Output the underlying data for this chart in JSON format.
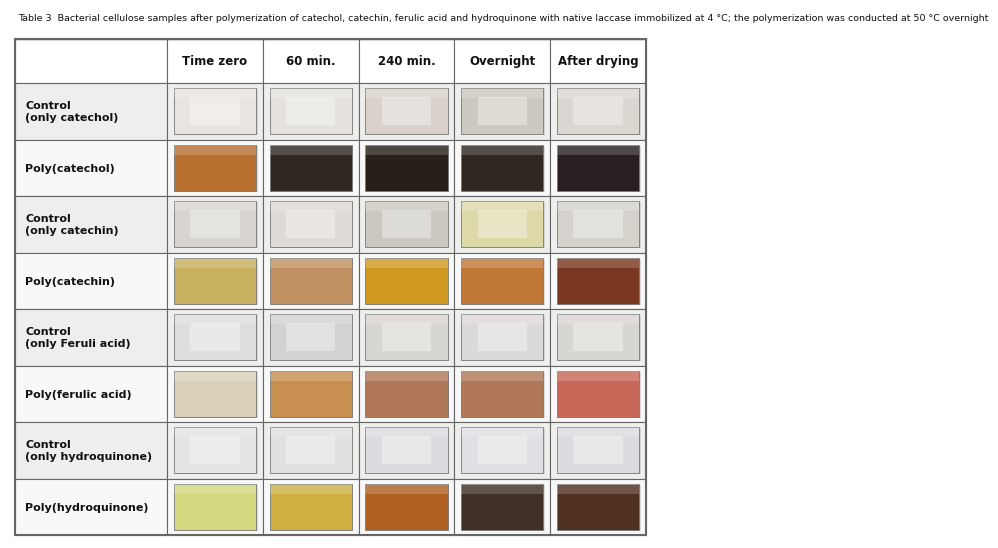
{
  "col_headers": [
    "Time zero",
    "60 min.",
    "240 min.",
    "Overnight",
    "After drying"
  ],
  "row_labels": [
    "Control\n(only catechol)",
    "Poly(catechol)",
    "Control\n(only catechin)",
    "Poly(catechin)",
    "Control\n(only Feruli acid)",
    "Poly(ferulic acid)",
    "Control\n(only hydroquinone)",
    "Poly(hydroquinone)"
  ],
  "control_rows": [
    0,
    2,
    4,
    6
  ],
  "cell_colors": [
    [
      "#e8e4df",
      "#e5e2dd",
      "#d8d2ca",
      "#cdc8c0",
      "#dbd6d0"
    ],
    [
      "#b87030",
      "#302820",
      "#282018",
      "#302820",
      "#282020"
    ],
    [
      "#d8d5d0",
      "#dedad5",
      "#ccc8c0",
      "#ddd8a8",
      "#d5d2cc"
    ],
    [
      "#c8b060",
      "#c09060",
      "#d09820",
      "#c07838",
      "#7a3820"
    ],
    [
      "#e0dedc",
      "#d4d2d0",
      "#d8d6d2",
      "#dcdad8",
      "#d8d6d2"
    ],
    [
      "#d8d0b8",
      "#c89050",
      "#b07858",
      "#b07858",
      "#c86858"
    ],
    [
      "#e4e4e4",
      "#e0e0e0",
      "#dcdce0",
      "#e0e0e4",
      "#dcdce0"
    ],
    [
      "#d4d880",
      "#d0b040",
      "#b06020",
      "#403028",
      "#503020"
    ]
  ],
  "cell_bg_colors": [
    [
      "#c8c5be",
      "#c8c5be",
      "#bfbab3",
      "#b8b3ac",
      "#c5c0bc"
    ],
    [
      "#9a6028",
      "#28201a",
      "#201810",
      "#28201a",
      "#201818"
    ],
    [
      "#c0bdb8",
      "#c5c2bc",
      "#b5b0a8",
      "#c8c390",
      "#bdbab4"
    ],
    [
      "#b0983e",
      "#a87848",
      "#b88010",
      "#a86028",
      "#621808"
    ],
    [
      "#c8c6c4",
      "#bbb9b8",
      "#c0bebc",
      "#c4c2c0",
      "#c0beba"
    ],
    [
      "#c0b8a0",
      "#b07838",
      "#987040",
      "#987040",
      "#b05040"
    ],
    [
      "#cccccc",
      "#c8c8c8",
      "#c4c4c8",
      "#c8c8cc",
      "#c4c4c8"
    ],
    [
      "#bcbf68",
      "#b89828",
      "#984808",
      "#302018",
      "#381808"
    ]
  ],
  "figure_bg": "#ffffff",
  "border_color": "#666666",
  "header_bg": "#ffffff",
  "control_bg": "#eeeeec",
  "poly_bg": "#f8f8f8",
  "title_text": "Table 3  Bacterial cellulose samples after polymerization of catechol, catechin, ferulic acid and hydroquinone with native laccase immobilized at 4 °C; the polymerization was conducted at 50 °C overnight",
  "title_fontsize": 6.8,
  "header_fontsize": 8.5,
  "label_fontsize": 8.0
}
